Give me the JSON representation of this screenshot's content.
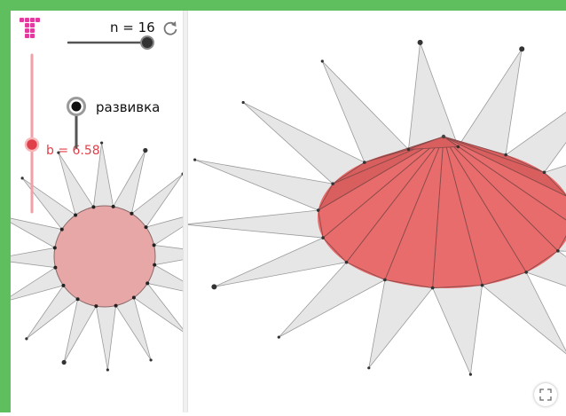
{
  "colors": {
    "top_border": "#5fbf5f",
    "ray_fill": "#e6e6e6",
    "ray_stroke": "#9a9a9a",
    "base_fill_2d": "#e8a7a7",
    "cone_fill": "#ea6a6a",
    "slider_red": "#e0404a",
    "slider_gray": "#4a4a4a"
  },
  "sliders": {
    "n": {
      "label": "n = 16",
      "value": 16,
      "min": 3,
      "max": 16
    },
    "b": {
      "label": "b = 6.58",
      "value": 6.58
    }
  },
  "toggle": {
    "label": "развивка"
  },
  "icons": {
    "logo": "geogebra-logo-icon",
    "reset": "refresh-icon",
    "fullscreen": "fullscreen-icon"
  }
}
